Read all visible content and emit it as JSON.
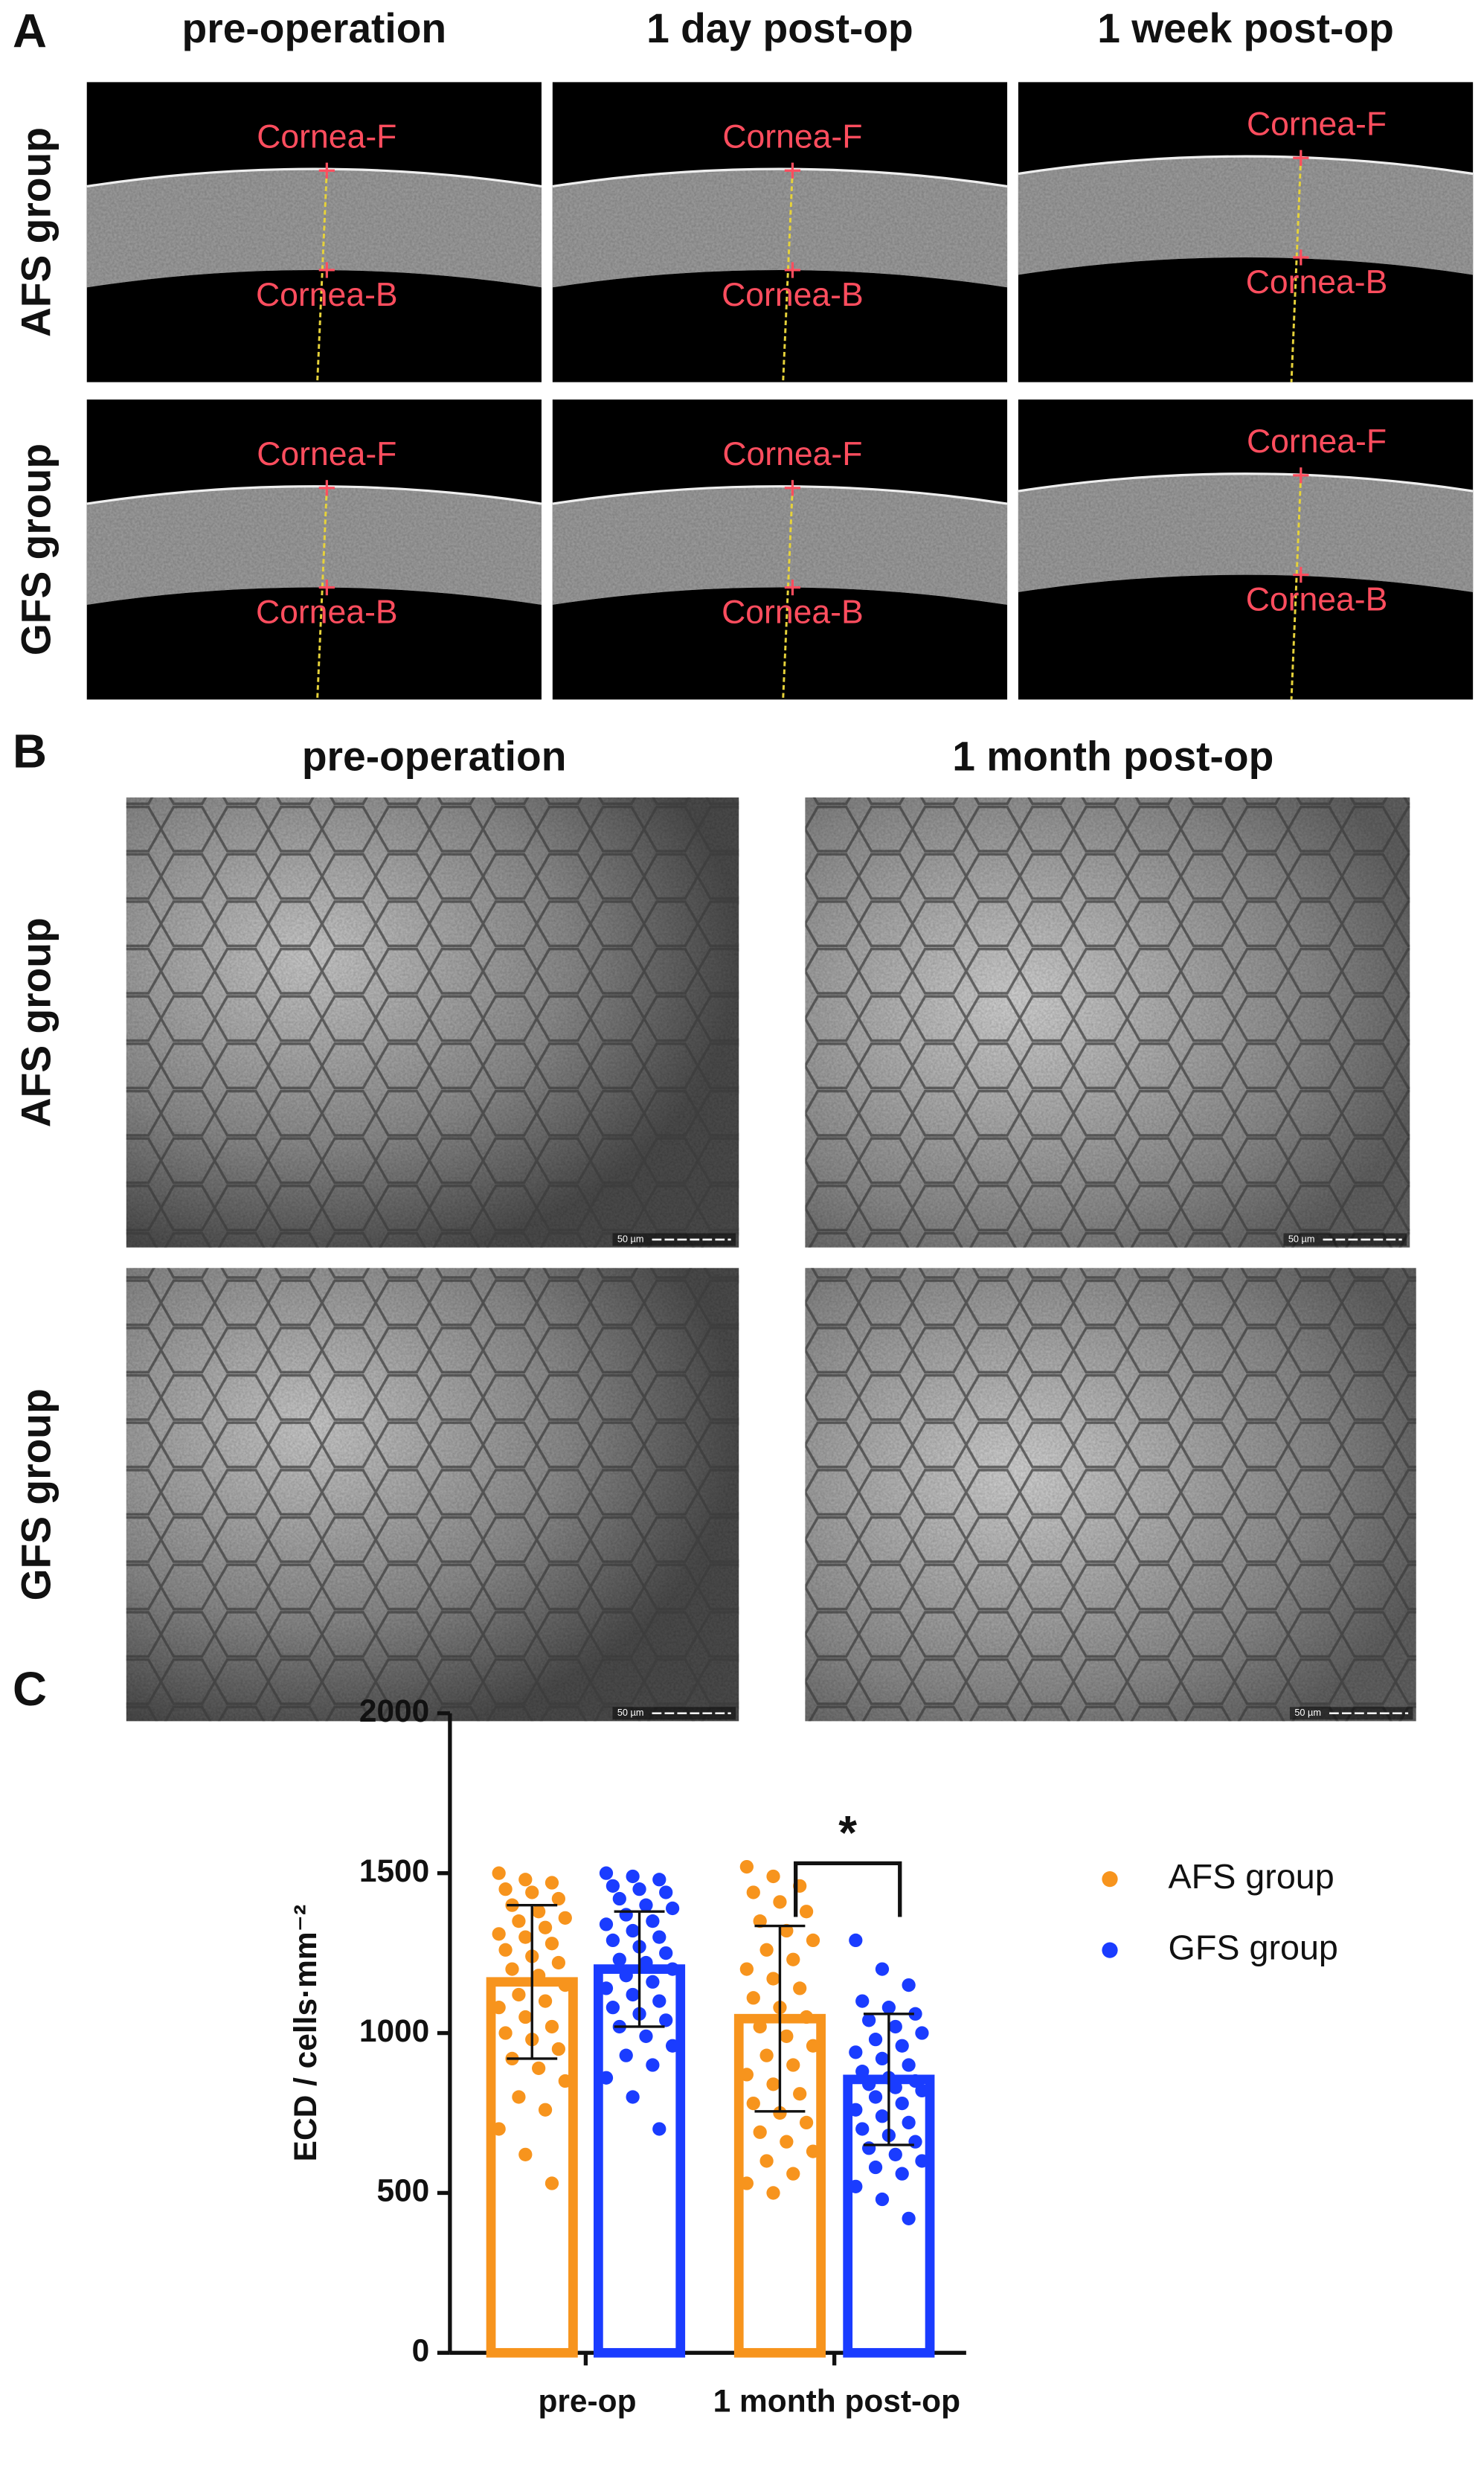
{
  "panel_a": {
    "label": "A",
    "columns": [
      "pre-operation",
      "1 day post-op",
      "1 week post-op"
    ],
    "rows": [
      "AFS group",
      "GFS group"
    ],
    "markers": [
      "Cornea-F",
      "Cornea-B"
    ]
  },
  "panel_b": {
    "label": "B",
    "columns": [
      "pre-operation",
      "1 month post-op"
    ],
    "rows": [
      "AFS group",
      "GFS group"
    ],
    "scale_bar": "50 µm"
  },
  "panel_c": {
    "label": "C"
  },
  "chart_data": {
    "type": "bar",
    "ylabel": "ECD / cells·mm⁻²",
    "categories": [
      "pre-op",
      "1 month post-op"
    ],
    "ylim": [
      0,
      2000
    ],
    "yticks": [
      0,
      500,
      1000,
      1500,
      2000
    ],
    "grid": false,
    "legend": "right",
    "annotation": "*",
    "series": [
      {
        "name": "AFS group",
        "color": "#f7941d",
        "values": [
          1160,
          1045
        ],
        "errors": [
          240,
          290
        ],
        "points": [
          [
            1500,
            1480,
            1470,
            1450,
            1440,
            1420,
            1400,
            1380,
            1360,
            1350,
            1330,
            1310,
            1300,
            1280,
            1260,
            1240,
            1220,
            1200,
            1180,
            1150,
            1120,
            1100,
            1080,
            1050,
            1020,
            1000,
            980,
            950,
            920,
            890,
            850,
            800,
            760,
            700,
            620,
            530
          ],
          [
            1520,
            1490,
            1460,
            1440,
            1410,
            1380,
            1350,
            1320,
            1290,
            1260,
            1230,
            1200,
            1170,
            1140,
            1110,
            1080,
            1050,
            1020,
            990,
            960,
            930,
            900,
            870,
            840,
            810,
            780,
            750,
            720,
            690,
            660,
            630,
            600,
            560,
            530,
            500
          ]
        ]
      },
      {
        "name": "GFS group",
        "color": "#1a3cff",
        "values": [
          1200,
          855
        ],
        "errors": [
          180,
          205
        ],
        "points": [
          [
            1500,
            1490,
            1480,
            1460,
            1450,
            1440,
            1420,
            1400,
            1390,
            1370,
            1350,
            1340,
            1320,
            1300,
            1290,
            1270,
            1250,
            1230,
            1220,
            1200,
            1180,
            1160,
            1140,
            1120,
            1100,
            1080,
            1060,
            1040,
            1020,
            990,
            960,
            930,
            900,
            860,
            800,
            700
          ],
          [
            1290,
            1200,
            1150,
            1100,
            1080,
            1060,
            1040,
            1020,
            1000,
            980,
            960,
            940,
            920,
            900,
            880,
            860,
            850,
            840,
            830,
            820,
            800,
            780,
            760,
            740,
            720,
            700,
            680,
            660,
            640,
            620,
            600,
            580,
            560,
            520,
            480,
            420
          ]
        ]
      }
    ]
  }
}
